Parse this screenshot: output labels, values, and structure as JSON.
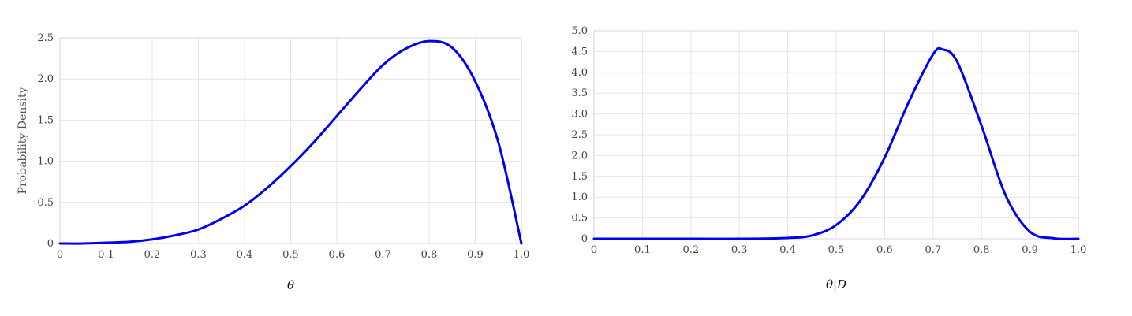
{
  "chart_data": [
    {
      "type": "line",
      "title": "",
      "xlabel": "θ",
      "ylabel": "Probability Density",
      "xlim": [
        0,
        1.0
      ],
      "ylim": [
        0,
        2.5
      ],
      "x_ticks": [
        "0",
        "0.1",
        "0.2",
        "0.3",
        "0.4",
        "0.5",
        "0.6",
        "0.7",
        "0.8",
        "0.9",
        "1.0"
      ],
      "y_ticks": [
        "0",
        "0.5",
        "1.0",
        "1.5",
        "2.0",
        "2.5"
      ],
      "grid": true,
      "color": "#0000ee",
      "series": [
        {
          "x": [
            0,
            0.05,
            0.1,
            0.15,
            0.2,
            0.25,
            0.3,
            0.35,
            0.4,
            0.45,
            0.5,
            0.55,
            0.6,
            0.65,
            0.7,
            0.75,
            0.8,
            0.85,
            0.9,
            0.95,
            1.0
          ],
          "y": [
            0,
            0.0,
            0.01,
            0.02,
            0.05,
            0.1,
            0.17,
            0.3,
            0.46,
            0.68,
            0.94,
            1.23,
            1.55,
            1.87,
            2.17,
            2.37,
            2.46,
            2.38,
            1.97,
            1.23,
            0
          ]
        }
      ]
    },
    {
      "type": "line",
      "title": "",
      "xlabel": "θ|D",
      "ylabel": "",
      "xlim": [
        0,
        1.0
      ],
      "ylim": [
        0,
        5.0
      ],
      "x_ticks": [
        "0",
        "0.1",
        "0.2",
        "0.3",
        "0.4",
        "0.5",
        "0.6",
        "0.7",
        "0.8",
        "0.9",
        "1.0"
      ],
      "y_ticks": [
        "0",
        "0.5",
        "1.0",
        "1.5",
        "2.0",
        "2.5",
        "3.0",
        "3.5",
        "4.0",
        "4.5",
        "5.0"
      ],
      "grid": true,
      "color": "#0000ee",
      "series": [
        {
          "x": [
            0,
            0.1,
            0.2,
            0.3,
            0.4,
            0.45,
            0.5,
            0.55,
            0.6,
            0.65,
            0.7,
            0.72,
            0.75,
            0.8,
            0.85,
            0.9,
            0.95,
            1.0
          ],
          "y": [
            0,
            0,
            0,
            0,
            0.02,
            0.08,
            0.33,
            0.92,
            1.95,
            3.29,
            4.43,
            4.55,
            4.25,
            2.72,
            1.04,
            0.17,
            0.01,
            0
          ]
        }
      ]
    }
  ]
}
